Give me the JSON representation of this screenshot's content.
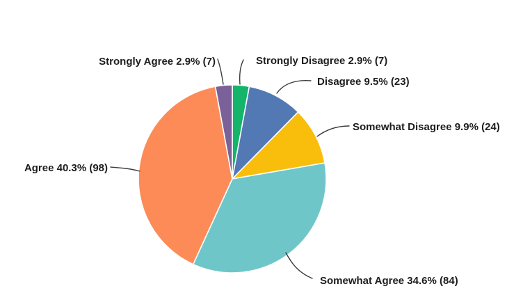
{
  "chart_data": {
    "type": "pie",
    "title": "",
    "start_position": "top",
    "direction": "clockwise",
    "background": "#ffffff",
    "label_text_color": "#1d1d1d",
    "leader_line_color": "#3c3c3c",
    "categories": [
      "Strongly Disagree",
      "Disagree",
      "Somewhat Disagree",
      "Somewhat Agree",
      "Agree",
      "Strongly Agree"
    ],
    "values": [
      2.9,
      9.5,
      9.9,
      34.6,
      40.3,
      2.9
    ],
    "counts": [
      7,
      23,
      24,
      84,
      98,
      7
    ],
    "colors": [
      "#14B46B",
      "#5379B5",
      "#F9BE0B",
      "#6FC6C9",
      "#FC8B58",
      "#7B6199"
    ],
    "slices": [
      {
        "label": "Strongly Disagree",
        "percent": 2.9,
        "count": 7,
        "color": "#14B46B",
        "label_full": "Strongly Disagree 2.9% (7)"
      },
      {
        "label": "Disagree",
        "percent": 9.5,
        "count": 23,
        "color": "#5379B5",
        "label_full": "Disagree 9.5% (23)"
      },
      {
        "label": "Somewhat Disagree",
        "percent": 9.9,
        "count": 24,
        "color": "#F9BE0B",
        "label_full": "Somewhat Disagree 9.9% (24)"
      },
      {
        "label": "Somewhat Agree",
        "percent": 34.6,
        "count": 84,
        "color": "#6FC6C9",
        "label_full": "Somewhat Agree 34.6% (84)"
      },
      {
        "label": "Agree",
        "percent": 40.3,
        "count": 98,
        "color": "#FC8B58",
        "label_full": "Agree 40.3% (98)"
      },
      {
        "label": "Strongly Agree",
        "percent": 2.9,
        "count": 7,
        "color": "#7B6199",
        "label_full": "Strongly Agree 2.9% (7)"
      }
    ]
  }
}
